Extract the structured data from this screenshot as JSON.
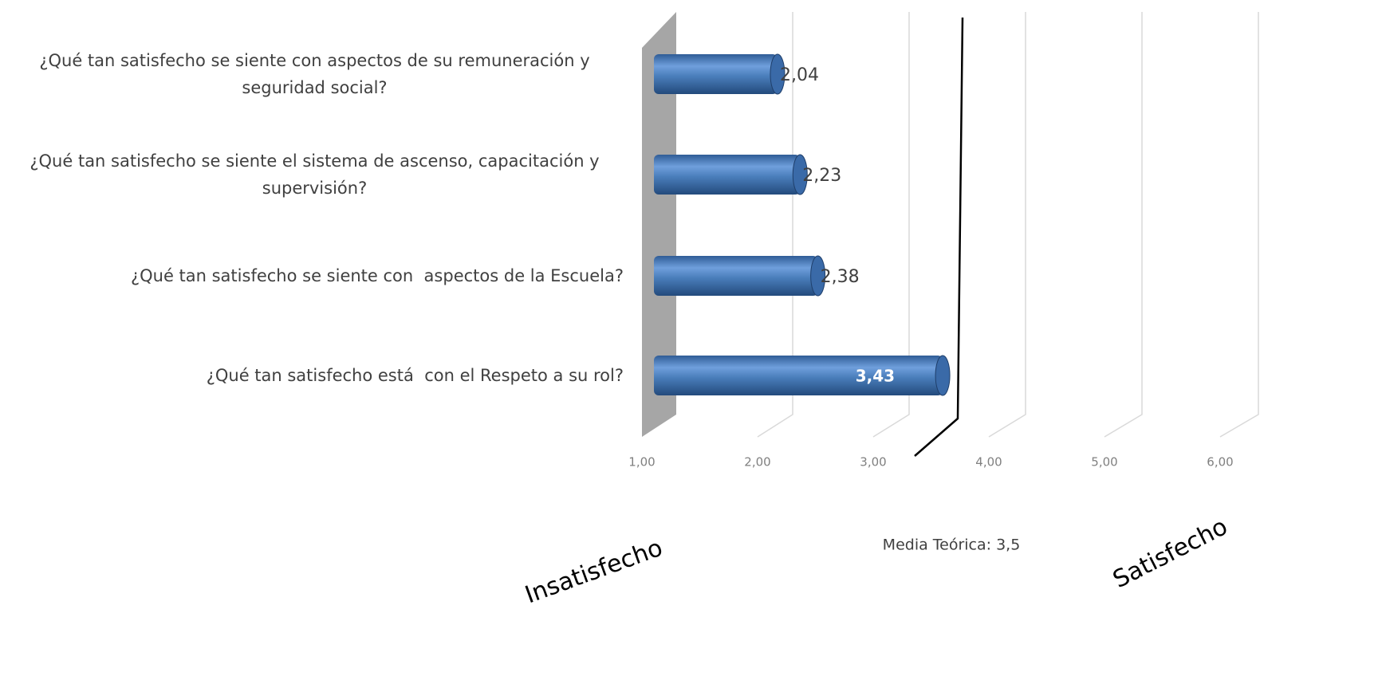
{
  "chart_data": {
    "type": "bar",
    "orientation": "horizontal",
    "style": "3d-cylinder",
    "categories": [
      "¿Qué tan satisfecho se siente con aspectos de su remuneración y seguridad social?",
      "¿Qué tan satisfecho se siente el sistema de ascenso, capacitación y supervisión?",
      "¿Qué tan satisfecho se siente con  aspectos de la Escuela?",
      "¿Qué tan satisfecho está  con el Respeto a su rol?"
    ],
    "values": [
      2.04,
      2.23,
      2.38,
      3.43
    ],
    "value_labels": [
      "2,04",
      "2,23",
      "2,38",
      "3,43"
    ],
    "color": "#4a7ebb",
    "xlim": [
      1,
      6
    ],
    "xticks": [
      {
        "value": 1,
        "label": "1,00"
      },
      {
        "value": 2,
        "label": "2,00"
      },
      {
        "value": 3,
        "label": "3,00"
      },
      {
        "value": 4,
        "label": "4,00"
      },
      {
        "value": 5,
        "label": "5,00"
      },
      {
        "value": 6,
        "label": "6,00"
      }
    ],
    "grid": true,
    "reference_line": {
      "value": 3.5,
      "label": "Media Teórica: 3,5"
    },
    "annotations": [
      "Insatisfecho",
      "Satisfecho"
    ]
  }
}
